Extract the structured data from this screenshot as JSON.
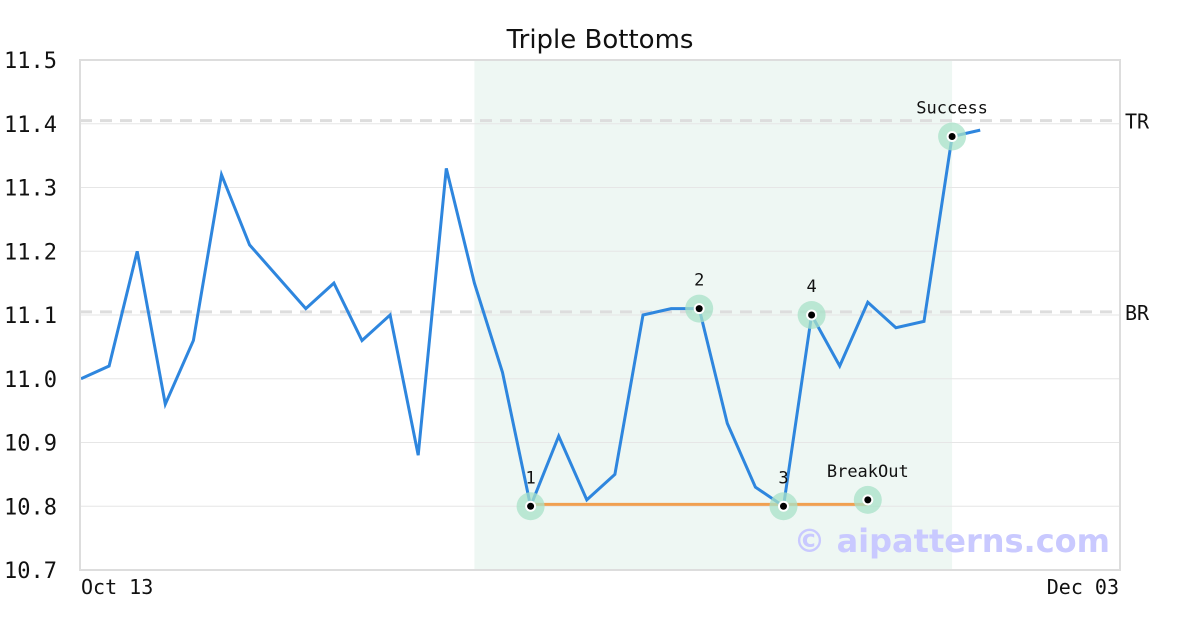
{
  "chart_data": {
    "type": "line",
    "title": "Triple Bottoms",
    "xlabel": "",
    "ylabel": "",
    "ylim": [
      10.7,
      11.5
    ],
    "yticks": [
      "10.7",
      "10.8",
      "10.9",
      "11.0",
      "11.1",
      "11.2",
      "11.3",
      "11.4",
      "11.5"
    ],
    "xtick_labels": {
      "start": "Oct 13",
      "end": "Dec 03"
    },
    "grid": true,
    "series": [
      {
        "color": "#2e86de",
        "values": [
          11.0,
          11.02,
          11.2,
          10.96,
          11.06,
          11.32,
          11.21,
          11.16,
          11.11,
          11.15,
          11.06,
          11.1,
          10.88,
          11.33,
          11.15,
          11.01,
          10.8,
          10.91,
          10.81,
          10.85,
          11.1,
          11.11,
          11.11,
          10.93,
          10.83,
          10.8,
          11.1,
          11.02,
          11.12,
          11.08,
          11.09,
          11.38,
          11.39
        ]
      }
    ],
    "reference_lines": [
      {
        "label": "TR",
        "value": 11.405,
        "color": "#dddddd"
      },
      {
        "label": "BR",
        "value": 11.105,
        "color": "#dddddd"
      }
    ],
    "pattern_region": {
      "start_index": 14,
      "end_index": 31,
      "color": "#eef7f3"
    },
    "support_line": {
      "start_index": 16,
      "end_index": 28,
      "value": 10.803,
      "color": "#f0a050"
    },
    "annotations": [
      {
        "label": "1",
        "index": 16,
        "value": 10.8
      },
      {
        "label": "2",
        "index": 22,
        "value": 11.11
      },
      {
        "label": "3",
        "index": 25,
        "value": 10.8
      },
      {
        "label": "4",
        "index": 26,
        "value": 11.1
      },
      {
        "label": "BreakOut",
        "index": 28,
        "value": 10.81
      },
      {
        "label": "Success",
        "index": 31,
        "value": 11.38
      }
    ],
    "watermark": "© aipatterns.com"
  }
}
